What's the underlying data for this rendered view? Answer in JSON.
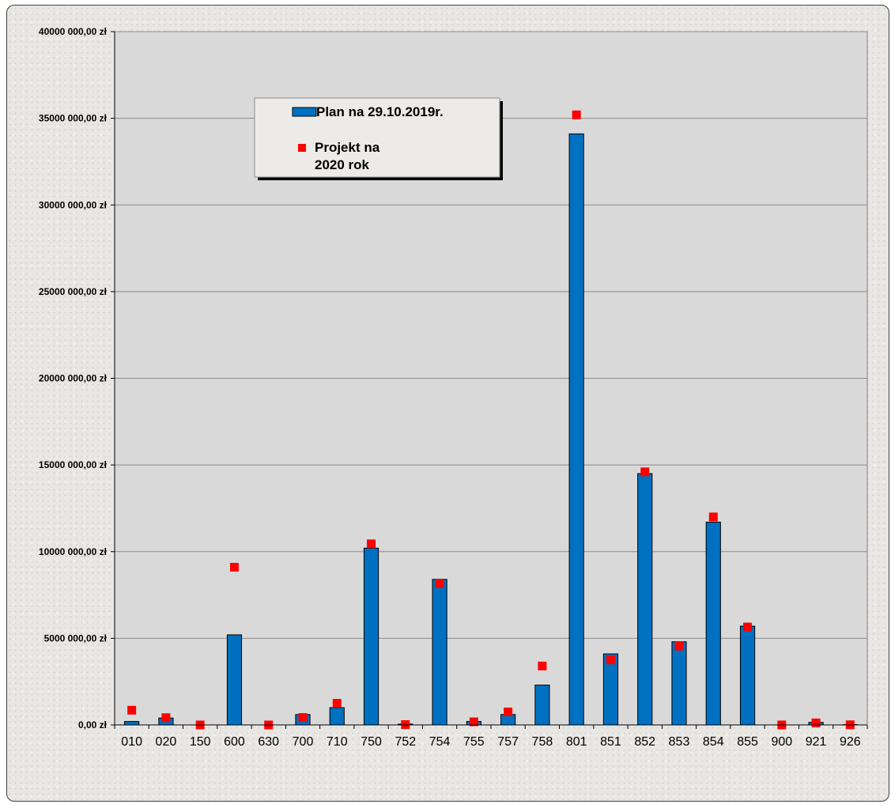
{
  "chart_data": {
    "type": "bar",
    "categories": [
      "010",
      "020",
      "150",
      "600",
      "630",
      "700",
      "710",
      "750",
      "752",
      "754",
      "755",
      "757",
      "758",
      "801",
      "851",
      "852",
      "853",
      "854",
      "855",
      "900",
      "921",
      "926"
    ],
    "series": [
      {
        "name": "Plan na 29.10.2019r.",
        "type": "bar",
        "color": "#0070c0",
        "values": [
          200000,
          400000,
          0,
          5200000,
          0,
          600000,
          1000000,
          10200000,
          50000,
          8400000,
          200000,
          600000,
          2300000,
          34100000,
          4100000,
          14500000,
          4800000,
          11700000,
          5700000,
          0,
          150000,
          20000
        ]
      },
      {
        "name": "Projekt na 2020 rok",
        "legend_lines": [
          "Projekt na",
          "2020 rok"
        ],
        "type": "scatter",
        "marker": "square",
        "color": "#ff0000",
        "values": [
          850000,
          420000,
          0,
          9100000,
          0,
          430000,
          1250000,
          10450000,
          20000,
          8150000,
          180000,
          750000,
          3400000,
          35200000,
          3750000,
          14600000,
          4550000,
          12000000,
          5650000,
          0,
          120000,
          10000
        ]
      }
    ],
    "ylim": [
      0,
      40000000
    ],
    "yticks": [
      0,
      5000000,
      10000000,
      15000000,
      20000000,
      25000000,
      30000000,
      35000000,
      40000000
    ],
    "ytick_labels": [
      "0,00 zł",
      "5000 000,00 zł",
      "10000 000,00 zł",
      "15000 000,00 zł",
      "20000 000,00 zł",
      "25000 000,00 zł",
      "30000 000,00 zł",
      "35000 000,00 zł",
      "40000 000,00 zł"
    ],
    "grid": true,
    "legend_position": "top-left",
    "plot_background": "#d9d9d9"
  }
}
